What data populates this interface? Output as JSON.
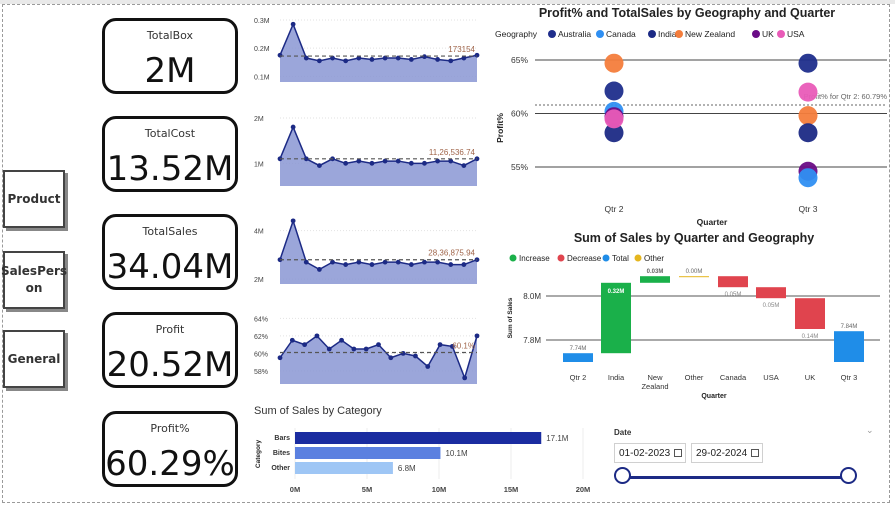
{
  "nav": {
    "product": "Product",
    "salesperson": "SalesPers on",
    "general": "General"
  },
  "kpis": [
    {
      "label": "TotalBox",
      "value": "2M"
    },
    {
      "label": "TotalCost",
      "value": "13.52M"
    },
    {
      "label": "TotalSales",
      "value": "34.04M"
    },
    {
      "label": "Profit",
      "value": "20.52M"
    },
    {
      "label": "Profit%",
      "value": "60.29%"
    }
  ],
  "sparklines": [
    {
      "yticks": [
        "0.3M",
        "0.2M",
        "0.1M"
      ],
      "avg_label": "173154",
      "values": [
        0.175,
        0.285,
        0.165,
        0.155,
        0.165,
        0.155,
        0.165,
        0.16,
        0.165,
        0.165,
        0.16,
        0.17,
        0.16,
        0.155,
        0.165,
        0.175
      ]
    },
    {
      "yticks": [
        "2M",
        "1M"
      ],
      "avg_label": "11,26,536.74",
      "values": [
        1.1,
        1.8,
        1.1,
        0.95,
        1.1,
        1.0,
        1.05,
        1.0,
        1.05,
        1.05,
        1.0,
        1.0,
        1.05,
        1.05,
        0.95,
        1.1
      ]
    },
    {
      "yticks": [
        "4M",
        "2M"
      ],
      "avg_label": "28,36,875.94",
      "values": [
        2.8,
        4.4,
        2.7,
        2.4,
        2.7,
        2.6,
        2.7,
        2.6,
        2.7,
        2.7,
        2.6,
        2.7,
        2.7,
        2.6,
        2.6,
        2.8
      ]
    },
    {
      "yticks": [
        "64%",
        "62%",
        "60%",
        "58%"
      ],
      "avg_label": "60.1%",
      "values": [
        59.5,
        61.5,
        61,
        62,
        60.5,
        61.5,
        60.5,
        60.5,
        61,
        59.5,
        60,
        59.7,
        58.5,
        61,
        60.8,
        57.2,
        62
      ]
    }
  ],
  "scatter": {
    "title": "Profit% and TotalSales by Geography and Quarter",
    "legend_title": "Geography",
    "legend": [
      {
        "name": "Australia",
        "color": "#1f2e8c"
      },
      {
        "name": "Canada",
        "color": "#2f8ff2"
      },
      {
        "name": "India",
        "color": "#1c2a85"
      },
      {
        "name": "New Zealand",
        "color": "#f47d3c"
      },
      {
        "name": "UK",
        "color": "#6a0c86"
      },
      {
        "name": "USA",
        "color": "#e95bb8"
      }
    ],
    "yticks": [
      "65%",
      "60%",
      "55%"
    ],
    "ylabel": "Profit%",
    "xlabel": "Quarter",
    "categories": [
      "Qtr 2",
      "Qtr 3"
    ],
    "ref_label": "Profit% for Qtr 2: 60.79%",
    "points": [
      {
        "geo": "New Zealand",
        "q": "Qtr 2",
        "y": 64.7
      },
      {
        "geo": "Australia",
        "q": "Qtr 2",
        "y": 62.1
      },
      {
        "geo": "Canada",
        "q": "Qtr 2",
        "y": 60.2
      },
      {
        "geo": "India",
        "q": "Qtr 2",
        "y": 58.2
      },
      {
        "geo": "UK",
        "q": "Qtr 2",
        "y": 59.7
      },
      {
        "geo": "USA",
        "q": "Qtr 2",
        "y": 59.5
      },
      {
        "geo": "Australia",
        "q": "Qtr 3",
        "y": 64.7
      },
      {
        "geo": "USA",
        "q": "Qtr 3",
        "y": 62.0
      },
      {
        "geo": "New Zealand",
        "q": "Qtr 3",
        "y": 59.8
      },
      {
        "geo": "India",
        "q": "Qtr 3",
        "y": 58.2
      },
      {
        "geo": "UK",
        "q": "Qtr 3",
        "y": 54.6
      },
      {
        "geo": "Canada",
        "q": "Qtr 3",
        "y": 54.0
      }
    ]
  },
  "waterfall": {
    "title": "Sum of Sales by Quarter and Geography",
    "legend": [
      {
        "name": "Increase",
        "color": "#1ab04a"
      },
      {
        "name": "Decrease",
        "color": "#e0444e"
      },
      {
        "name": "Total",
        "color": "#1f8de8"
      },
      {
        "name": "Other",
        "color": "#e5b61e"
      }
    ],
    "ylabel": "Sum of Sales",
    "xlabel": "Quarter",
    "yticks": [
      "8.0M",
      "7.8M"
    ],
    "bars": [
      {
        "cat": "Qtr 2",
        "type": "Total",
        "label": "7.74M"
      },
      {
        "cat": "India",
        "type": "Increase",
        "label": "0.32M"
      },
      {
        "cat": "New Zealand",
        "type": "Increase",
        "label": "0.03M"
      },
      {
        "cat": "Other",
        "type": "Other",
        "label": "0.00M"
      },
      {
        "cat": "Canada",
        "type": "Decrease",
        "label": "0.05M"
      },
      {
        "cat": "USA",
        "type": "Decrease",
        "label": "0.05M"
      },
      {
        "cat": "UK",
        "type": "Decrease",
        "label": "0.14M"
      },
      {
        "cat": "Qtr 3",
        "type": "Total",
        "label": "7.84M"
      }
    ]
  },
  "chart_data": {
    "type": "bar",
    "title": "Sum of Sales by Category",
    "ylabel": "Category",
    "categories": [
      "Bars",
      "Bites",
      "Other"
    ],
    "values": [
      17.1,
      10.1,
      6.8
    ],
    "value_labels": [
      "17.1M",
      "10.1M",
      "6.8M"
    ],
    "colors": [
      "#1a2ca0",
      "#5b80e0",
      "#9ec6f5"
    ],
    "xticks": [
      "0M",
      "5M",
      "10M",
      "15M",
      "20M"
    ],
    "xlim": [
      0,
      20
    ]
  },
  "date_filter": {
    "label": "Date",
    "start": "01-02-2023",
    "end": "29-02-2024"
  }
}
